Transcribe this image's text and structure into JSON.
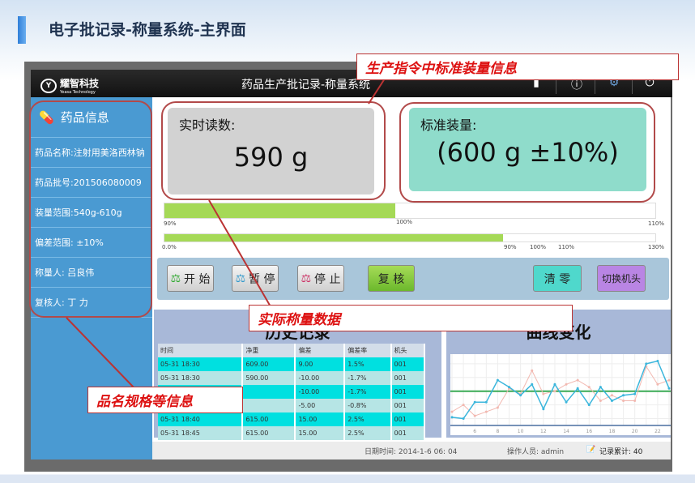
{
  "slide_title": "电子批记录-称量系统-主界面",
  "header": {
    "logo_text": "耀智科技",
    "logo_sub": "Yeasa Technology",
    "title": "药品生产批记录-称量系统",
    "icons": [
      "lock-icon",
      "help-icon",
      "settings-icon",
      "power-icon"
    ]
  },
  "sidebar": {
    "title": "药品信息",
    "items": [
      "药品名称:注射用美洛西林钠",
      "药品批号:201506080009",
      "装量范围:540g-610g",
      "偏差范围: ±10%",
      "称量人: 吕良伟",
      "复核人: 丁 力"
    ]
  },
  "realtime": {
    "label": "实时读数:",
    "value": "590 g"
  },
  "standard": {
    "label": "标准装量:",
    "value": "(600 g ±10%)"
  },
  "bar1": {
    "fill_percent": 47,
    "ticks": [
      "90%",
      "100%",
      "110%"
    ]
  },
  "bar2": {
    "fill_percent": 69,
    "ticks": [
      "0.0%",
      "90%",
      "100%",
      "110%",
      "130%"
    ]
  },
  "buttons": {
    "start": "开 始",
    "pause": "暂 停",
    "stop": "停 止",
    "review": "复 核",
    "zero": "清 零",
    "switch": "切换机头"
  },
  "history": {
    "title": "历史记录",
    "columns": [
      "时间",
      "净重",
      "偏差",
      "偏差率",
      "机头"
    ],
    "rows": [
      [
        "05-31 18:30",
        "609.00",
        "9.00",
        "1.5%",
        "001"
      ],
      [
        "05-31 18:30",
        "590.00",
        "-10.00",
        "-1.7%",
        "001"
      ],
      [
        "",
        "",
        "-10.00",
        "-1.7%",
        "001"
      ],
      [
        "",
        "",
        "-5.00",
        "-0.8%",
        "001"
      ],
      [
        "05-31 18:40",
        "615.00",
        "15.00",
        "2.5%",
        "001"
      ],
      [
        "05-31 18:45",
        "615.00",
        "15.00",
        "2.5%",
        "001"
      ]
    ]
  },
  "curve": {
    "title": "曲线变化"
  },
  "chart_data": {
    "type": "line",
    "x": [
      4,
      5,
      6,
      7,
      8,
      9,
      10,
      11,
      12,
      13,
      14,
      15,
      16,
      17,
      18,
      19,
      20,
      21,
      22,
      23
    ],
    "xticks": [
      "6",
      "8",
      "10",
      "12",
      "14",
      "16",
      "18",
      "20",
      "22"
    ],
    "xlim": [
      4,
      23
    ],
    "series": [
      {
        "color": "#3bb6dc",
        "values": [
          581,
          580,
          592,
          592,
          608,
          603,
          597,
          605,
          587,
          605,
          592,
          602,
          590,
          603,
          593,
          597,
          598,
          620,
          622,
          602
        ]
      },
      {
        "color": "#f2b8b0",
        "values": [
          585,
          590,
          582,
          585,
          588,
          602,
          598,
          615,
          598,
          600,
          605,
          608,
          603,
          593,
          597,
          593,
          593,
          618,
          605,
          608
        ]
      }
    ],
    "reference_line": {
      "value": 600,
      "color": "#3aaa55"
    },
    "grid": true
  },
  "status": {
    "datetime": "日期时间: 2014-1-6  06: 04",
    "operator": "操作人员: admin",
    "record_count": "记录累计: 40"
  },
  "callouts": {
    "standard": "生产指令中标准装量信息",
    "actual": "实际称量数据",
    "spec": "品名规格等信息"
  }
}
